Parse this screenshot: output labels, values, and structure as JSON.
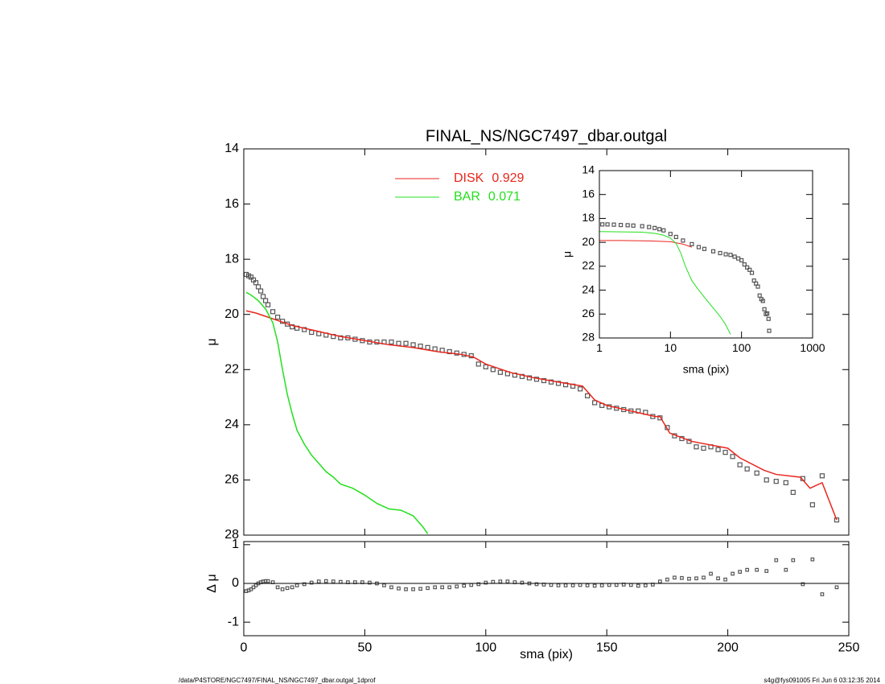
{
  "chart_data": {
    "type": "line",
    "title": "FINAL_NS/NGC7497_dbar.outgal",
    "xlabel": "sma (pix)",
    "ylabel": "μ",
    "xlim": [
      0,
      250
    ],
    "xticks": [
      0,
      50,
      100,
      150,
      200,
      250
    ],
    "ylim": [
      28,
      14
    ],
    "yticks": [
      14,
      16,
      18,
      20,
      22,
      24,
      26,
      28
    ],
    "legend": "upper center",
    "points": {
      "color": "#555555",
      "x": [
        1,
        2,
        3,
        4,
        5,
        6,
        7,
        8,
        9,
        10,
        12,
        14,
        16,
        18,
        20,
        22,
        25,
        28,
        31,
        34,
        37,
        40,
        43,
        46,
        49,
        52,
        55,
        58,
        61,
        64,
        67,
        70,
        73,
        76,
        79,
        82,
        85,
        88,
        91,
        94,
        97,
        100,
        103,
        106,
        109,
        112,
        115,
        118,
        121,
        124,
        127,
        130,
        133,
        136,
        139,
        142,
        145,
        148,
        151,
        154,
        157,
        160,
        163,
        166,
        169,
        172,
        175,
        178,
        181,
        184,
        187,
        190,
        193,
        196,
        199,
        202,
        205,
        208,
        212,
        216,
        220,
        224,
        227,
        231,
        235,
        239,
        245
      ],
      "values": [
        18.55,
        18.6,
        18.65,
        18.75,
        18.85,
        19.0,
        19.15,
        19.35,
        19.5,
        19.65,
        19.9,
        20.1,
        20.25,
        20.35,
        20.45,
        20.5,
        20.55,
        20.65,
        20.7,
        20.75,
        20.8,
        20.85,
        20.85,
        20.9,
        20.95,
        21.0,
        21.0,
        21.0,
        21.0,
        21.05,
        21.05,
        21.1,
        21.15,
        21.2,
        21.25,
        21.3,
        21.35,
        21.4,
        21.45,
        21.5,
        21.8,
        21.9,
        22.0,
        22.1,
        22.15,
        22.2,
        22.25,
        22.3,
        22.35,
        22.4,
        22.45,
        22.5,
        22.55,
        22.6,
        22.7,
        22.95,
        23.2,
        23.3,
        23.35,
        23.4,
        23.45,
        23.5,
        23.5,
        23.55,
        23.7,
        23.75,
        24.1,
        24.4,
        24.5,
        24.6,
        24.8,
        24.85,
        24.8,
        24.9,
        25.0,
        25.15,
        25.45,
        25.6,
        25.75,
        26.0,
        26.05,
        26.1,
        26.45,
        25.95,
        26.9,
        25.85,
        27.45
      ],
      "residuals": [
        -0.2,
        -0.18,
        -0.15,
        -0.1,
        -0.05,
        0,
        0.03,
        0.05,
        0.06,
        0.06,
        0.03,
        -0.1,
        -0.15,
        -0.12,
        -0.1,
        -0.05,
        -0.02,
        0.02,
        0.05,
        0.06,
        0.05,
        0.04,
        0.03,
        0.03,
        0.03,
        0.02,
        0.0,
        -0.05,
        -0.1,
        -0.13,
        -0.15,
        -0.15,
        -0.14,
        -0.12,
        -0.1,
        -0.1,
        -0.1,
        -0.08,
        -0.06,
        -0.04,
        -0.02,
        0.02,
        0.04,
        0.05,
        0.05,
        0.03,
        0.02,
        0.0,
        -0.02,
        -0.03,
        -0.04,
        -0.05,
        -0.05,
        -0.05,
        -0.04,
        -0.05,
        -0.06,
        -0.05,
        -0.04,
        -0.04,
        -0.03,
        -0.04,
        -0.06,
        -0.05,
        -0.03,
        0.05,
        0.1,
        0.15,
        0.14,
        0.12,
        0.13,
        0.15,
        0.25,
        0.13,
        0.1,
        0.25,
        0.3,
        0.35,
        0.35,
        0.32,
        0.6,
        0.35,
        0.6,
        -0.02,
        0.62,
        -0.28,
        -0.1
      ]
    },
    "series": [
      {
        "name": "DISK",
        "fraction": 0.929,
        "color": "#e8261c",
        "x": [
          1,
          5,
          10,
          15,
          20,
          25,
          30,
          35,
          40,
          50,
          60,
          70,
          80,
          90,
          95,
          100,
          110,
          120,
          130,
          140,
          145,
          150,
          160,
          170,
          172,
          176,
          185,
          200,
          205,
          215,
          220,
          230,
          234,
          239,
          245
        ],
        "values": [
          19.87,
          19.95,
          20.1,
          20.25,
          20.4,
          20.5,
          20.6,
          20.7,
          20.8,
          20.95,
          21.1,
          21.2,
          21.35,
          21.45,
          21.55,
          21.8,
          22.1,
          22.3,
          22.45,
          22.6,
          23.1,
          23.3,
          23.5,
          23.7,
          23.7,
          24.3,
          24.6,
          24.85,
          25.2,
          25.65,
          25.8,
          25.9,
          26.3,
          26.1,
          27.45
        ]
      },
      {
        "name": "BAR",
        "fraction": 0.071,
        "color": "#22e01c",
        "x": [
          1,
          3,
          6,
          9,
          12,
          14,
          16,
          18,
          20,
          22,
          25,
          28,
          31,
          34,
          37,
          40,
          45,
          50,
          55,
          60,
          65,
          70,
          74,
          76
        ],
        "values": [
          19.2,
          19.3,
          19.5,
          19.8,
          20.3,
          21.0,
          22.0,
          22.9,
          23.6,
          24.2,
          24.7,
          25.1,
          25.4,
          25.7,
          25.9,
          26.15,
          26.3,
          26.55,
          26.85,
          27.05,
          27.1,
          27.3,
          27.7,
          27.95
        ]
      }
    ],
    "residual_panel": {
      "ylabel": "Δ μ",
      "ylim": [
        -1.35,
        1.08
      ],
      "yticks": [
        -1,
        0,
        1
      ],
      "hline": 0
    },
    "inset": {
      "xscale": "log",
      "xlabel": "sma (pix)",
      "ylabel": "μ",
      "xlim": [
        1,
        1000
      ],
      "xticks": [
        1,
        10,
        100,
        1000
      ],
      "ylim": [
        28,
        14
      ],
      "yticks": [
        14,
        16,
        18,
        20,
        22,
        24,
        26,
        28
      ],
      "points": {
        "x": [
          1.1,
          1.3,
          1.6,
          2,
          2.5,
          3,
          4,
          5,
          6,
          7,
          8,
          10,
          12,
          15,
          20,
          25,
          30,
          40,
          50,
          60,
          70,
          80,
          90,
          100,
          110,
          120,
          130,
          140,
          150,
          160,
          170,
          180,
          190,
          200,
          210,
          220,
          230,
          240,
          245
        ],
        "values": [
          18.5,
          18.5,
          18.52,
          18.55,
          18.57,
          18.6,
          18.65,
          18.72,
          18.8,
          18.9,
          19.0,
          19.3,
          19.55,
          19.85,
          20.15,
          20.4,
          20.55,
          20.75,
          20.9,
          21.0,
          21.05,
          21.2,
          21.35,
          21.5,
          21.85,
          22.1,
          22.3,
          22.55,
          23.2,
          23.45,
          23.7,
          24.45,
          24.75,
          24.9,
          25.6,
          26.0,
          25.95,
          26.4,
          27.4
        ]
      },
      "series": [
        {
          "x": [
            1,
            2,
            5,
            10,
            15,
            20
          ],
          "values": [
            19.85,
            19.85,
            19.88,
            19.95,
            20.15,
            20.4
          ]
        },
        {
          "x": [
            1,
            2,
            4,
            6,
            8,
            10,
            12,
            14,
            16,
            18,
            20,
            25,
            30,
            40,
            50,
            60,
            70
          ],
          "values": [
            19.1,
            19.12,
            19.15,
            19.25,
            19.4,
            19.65,
            20.1,
            20.9,
            21.9,
            22.6,
            23.2,
            24.0,
            24.6,
            25.5,
            26.2,
            26.9,
            27.7
          ]
        }
      ]
    }
  },
  "footer": {
    "left": "/data/P4STORE/NGC7497/FINAL_NS/NGC7497_dbar.outgal_1dprof",
    "right": "s4g@fys091005  Fri Jun  6 03:12:35 2014"
  }
}
